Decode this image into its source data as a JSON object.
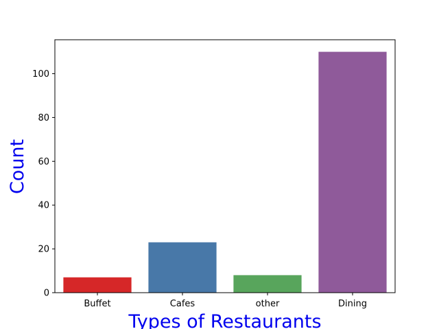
{
  "chart_data": {
    "type": "bar",
    "categories": [
      "Buffet",
      "Cafes",
      "other",
      "Dining"
    ],
    "values": [
      7,
      23,
      8,
      110
    ],
    "colors": [
      "#d62728",
      "#4878a8",
      "#58a55c",
      "#8f5a9a"
    ],
    "xlabel": "Types of Restaurants",
    "ylabel": "Count",
    "label_color": "#0000ee",
    "ylim": [
      0,
      115.5
    ],
    "yticks": [
      0,
      20,
      40,
      60,
      80,
      100
    ],
    "grid": false,
    "legend": "none"
  }
}
